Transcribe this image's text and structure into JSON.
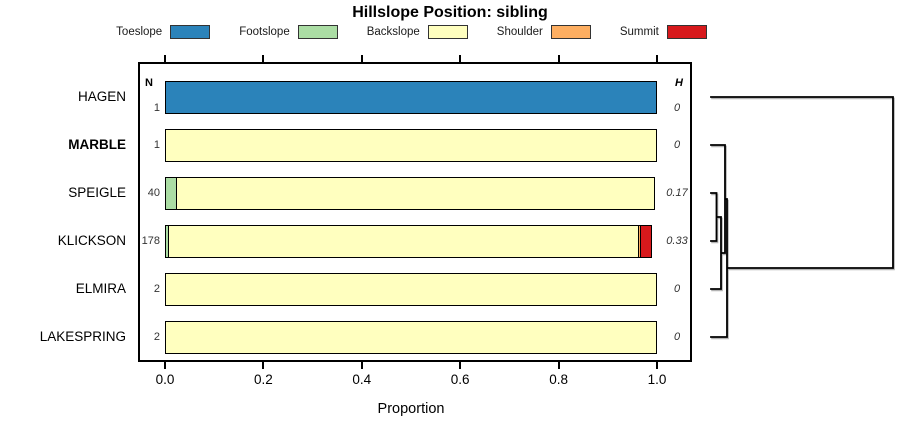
{
  "title": "Hillslope Position: sibling",
  "legend": {
    "items": [
      {
        "label": "Toeslope",
        "color": "#2B83BA"
      },
      {
        "label": "Footslope",
        "color": "#ABDDA4"
      },
      {
        "label": "Backslope",
        "color": "#FFFFBF"
      },
      {
        "label": "Shoulder",
        "color": "#FDAE61"
      },
      {
        "label": "Summit",
        "color": "#D7191C"
      }
    ]
  },
  "columns": {
    "n_header": "N",
    "h_header": "H"
  },
  "axis": {
    "xlabel": "Proportion",
    "tick_labels": [
      "0.0",
      "0.2",
      "0.4",
      "0.6",
      "0.8",
      "1.0"
    ],
    "tick_values": [
      0,
      0.2,
      0.4,
      0.6,
      0.8,
      1.0
    ]
  },
  "chart_data": {
    "type": "bar",
    "subtype": "horizontal_stacked_proportion",
    "title": "Hillslope Position: sibling",
    "xlabel": "Proportion",
    "xlim": [
      0,
      1
    ],
    "grid": false,
    "legend_position": "top",
    "categories": [
      "HAGEN",
      "MARBLE",
      "SPEIGLE",
      "KLICKSON",
      "ELMIRA",
      "LAKESPRING"
    ],
    "highlighted_category": "MARBLE",
    "N": [
      1,
      1,
      40,
      178,
      2,
      2
    ],
    "H": [
      0,
      0,
      0.17,
      0.33,
      0,
      0
    ],
    "H_display": [
      "0",
      "0",
      "0.17",
      "0.33",
      "0",
      "0"
    ],
    "classes": [
      "Toeslope",
      "Footslope",
      "Backslope",
      "Shoulder",
      "Summit"
    ],
    "class_colors": [
      "#2B83BA",
      "#ABDDA4",
      "#FFFFBF",
      "#FDAE61",
      "#D7191C"
    ],
    "series": [
      {
        "name": "HAGEN",
        "proportions": [
          1,
          0,
          0,
          0,
          0
        ]
      },
      {
        "name": "MARBLE",
        "proportions": [
          0,
          0,
          1,
          0,
          0
        ]
      },
      {
        "name": "SPEIGLE",
        "proportions": [
          0,
          0.025,
          0.975,
          0,
          0
        ]
      },
      {
        "name": "KLICKSON",
        "proportions": [
          0,
          0.01,
          0.958,
          0.006,
          0.026
        ]
      },
      {
        "name": "ELMIRA",
        "proportions": [
          0,
          0,
          1,
          0,
          0
        ]
      },
      {
        "name": "LAKESPRING",
        "proportions": [
          0,
          0,
          1,
          0,
          0
        ]
      }
    ]
  },
  "dendrogram": {
    "leaf_order": [
      "HAGEN",
      "MARBLE",
      "SPEIGLE",
      "KLICKSON",
      "ELMIRA",
      "LAKESPRING"
    ],
    "structure_newick": "(HAGEN,(LAKESPRING,(MARBLE,(ELMIRA,(SPEIGLE,KLICKSON)))));",
    "segments": [
      [
        711,
        97,
        893,
        97
      ],
      [
        893,
        97,
        893,
        268
      ],
      [
        727,
        268,
        893,
        268
      ],
      [
        727,
        199,
        727,
        337
      ],
      [
        711,
        337,
        727,
        337
      ],
      [
        725,
        199,
        727,
        199
      ],
      [
        725,
        145,
        725,
        253
      ],
      [
        711,
        145,
        725,
        145
      ],
      [
        721,
        253,
        725,
        253
      ],
      [
        721,
        217,
        721,
        289
      ],
      [
        711,
        289,
        721,
        289
      ],
      [
        716.5,
        217,
        721,
        217
      ],
      [
        716.5,
        193,
        716.5,
        241
      ],
      [
        711,
        193,
        716.5,
        193
      ],
      [
        711,
        241,
        716.5,
        241
      ]
    ]
  }
}
